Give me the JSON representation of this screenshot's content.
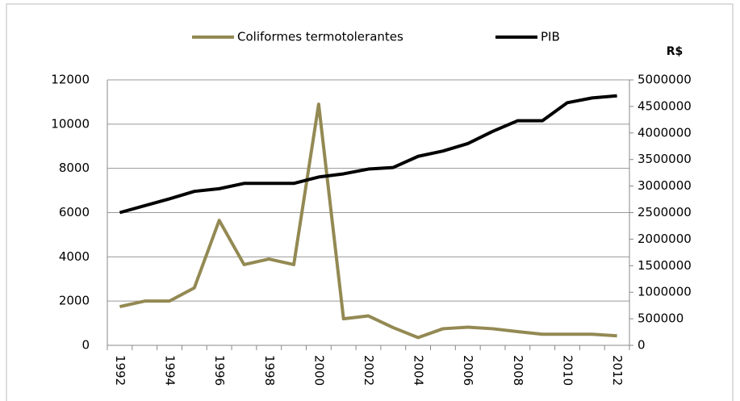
{
  "chart_data": {
    "type": "line",
    "y2label": "R$",
    "categories": [
      "1992",
      null,
      "1994",
      null,
      "1996",
      null,
      "1998",
      null,
      "2000",
      null,
      "2002",
      null,
      "2004",
      null,
      "2006",
      null,
      "2008",
      null,
      "2010",
      null,
      "2012"
    ],
    "series": [
      {
        "name": "Coliformes termotolerantes",
        "color": "#938953",
        "axis": "y",
        "values": [
          1750,
          2000,
          2000,
          2600,
          5650,
          3650,
          3900,
          3650,
          10900,
          1200,
          1330,
          800,
          350,
          750,
          820,
          750,
          620,
          500,
          500,
          500,
          430
        ]
      },
      {
        "name": "PIB",
        "color": "#000000",
        "axis": "y2",
        "values": [
          2500000,
          2630000,
          2760000,
          2900000,
          2950000,
          3050000,
          3050000,
          3050000,
          3170000,
          3230000,
          3320000,
          3350000,
          3560000,
          3660000,
          3800000,
          4030000,
          4230000,
          4230000,
          4570000,
          4660000,
          4700000
        ]
      }
    ],
    "ylim": [
      0,
      12000
    ],
    "yticks": [
      0,
      2000,
      4000,
      6000,
      8000,
      10000,
      12000
    ],
    "y2lim": [
      0,
      5000000
    ],
    "y2ticks": [
      0,
      500000,
      1000000,
      1500000,
      2000000,
      2500000,
      3000000,
      3500000,
      4000000,
      4500000,
      5000000
    ],
    "grid": true,
    "legend": "top"
  }
}
